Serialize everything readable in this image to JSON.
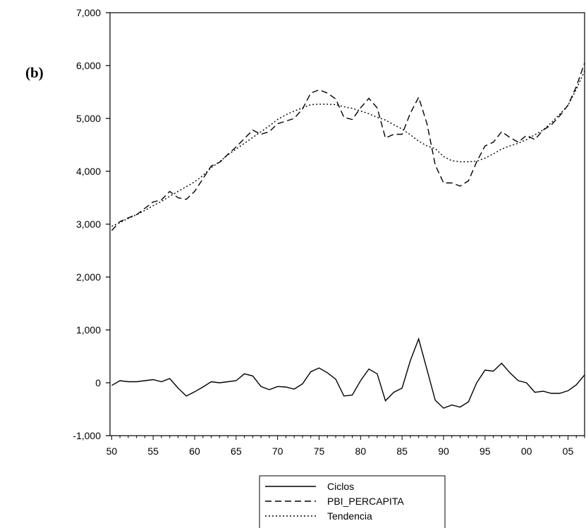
{
  "panel_label": "(b)",
  "chart_data": {
    "type": "line",
    "title": "",
    "xlabel": "",
    "ylabel": "",
    "x": [
      1950,
      1951,
      1952,
      1953,
      1954,
      1955,
      1956,
      1957,
      1958,
      1959,
      1960,
      1961,
      1962,
      1963,
      1964,
      1965,
      1966,
      1967,
      1968,
      1969,
      1970,
      1971,
      1972,
      1973,
      1974,
      1975,
      1976,
      1977,
      1978,
      1979,
      1980,
      1981,
      1982,
      1983,
      1984,
      1985,
      1986,
      1987,
      1988,
      1989,
      1990,
      1991,
      1992,
      1993,
      1994,
      1995,
      1996,
      1997,
      1998,
      1999,
      2000,
      2001,
      2002,
      2003,
      2004,
      2005,
      2006,
      2007
    ],
    "x_tick_values": [
      1950,
      1955,
      1960,
      1965,
      1970,
      1975,
      1980,
      1985,
      1990,
      1995,
      2000,
      2005
    ],
    "x_tick_labels": [
      "50",
      "55",
      "60",
      "65",
      "70",
      "75",
      "80",
      "85",
      "90",
      "95",
      "00",
      "05"
    ],
    "y_tick_values": [
      -1000,
      0,
      1000,
      2000,
      3000,
      4000,
      5000,
      6000,
      7000
    ],
    "y_tick_labels": [
      "-1,000",
      "0",
      "1,000",
      "2,000",
      "3,000",
      "4,000",
      "5,000",
      "6,000",
      "7,000"
    ],
    "xlim": [
      1949.8,
      2007
    ],
    "ylim": [
      -1000,
      7000
    ],
    "grid": false,
    "legend_position": "bottom-center",
    "series": [
      {
        "name": "Ciclos",
        "dash": "solid",
        "color": "#000000",
        "values": [
          -50,
          40,
          20,
          20,
          40,
          60,
          20,
          80,
          -100,
          -250,
          -170,
          -80,
          20,
          0,
          20,
          40,
          170,
          130,
          -70,
          -130,
          -70,
          -80,
          -120,
          -20,
          210,
          280,
          190,
          70,
          -250,
          -230,
          40,
          260,
          170,
          -340,
          -180,
          -100,
          420,
          830,
          250,
          -330,
          -480,
          -420,
          -460,
          -360,
          0,
          240,
          220,
          370,
          190,
          40,
          0,
          -180,
          -160,
          -200,
          -200,
          -150,
          -40,
          150
        ]
      },
      {
        "name": "PBI_PERCAPITA",
        "dash": "long-dash",
        "color": "#000000",
        "values": [
          2880,
          3050,
          3120,
          3180,
          3300,
          3420,
          3460,
          3620,
          3500,
          3470,
          3620,
          3860,
          4100,
          4170,
          4320,
          4460,
          4620,
          4780,
          4700,
          4750,
          4900,
          4950,
          5000,
          5180,
          5480,
          5540,
          5480,
          5370,
          5020,
          4980,
          5200,
          5380,
          5200,
          4630,
          4700,
          4700,
          5100,
          5400,
          4900,
          4120,
          3780,
          3780,
          3720,
          3820,
          4180,
          4480,
          4550,
          4750,
          4640,
          4550,
          4680,
          4600,
          4780,
          4880,
          5050,
          5250,
          5600,
          6050
        ]
      },
      {
        "name": "Tendencia",
        "dash": "dotted",
        "color": "#000000",
        "values": [
          2960,
          3030,
          3110,
          3180,
          3260,
          3350,
          3430,
          3530,
          3620,
          3710,
          3800,
          3920,
          4070,
          4180,
          4310,
          4420,
          4530,
          4640,
          4750,
          4860,
          4980,
          5070,
          5140,
          5200,
          5260,
          5270,
          5270,
          5260,
          5220,
          5190,
          5140,
          5090,
          5020,
          4970,
          4880,
          4800,
          4690,
          4570,
          4480,
          4430,
          4280,
          4200,
          4180,
          4180,
          4190,
          4250,
          4330,
          4420,
          4480,
          4530,
          4600,
          4690,
          4780,
          4920,
          5080,
          5250,
          5550,
          5900
        ]
      }
    ]
  }
}
